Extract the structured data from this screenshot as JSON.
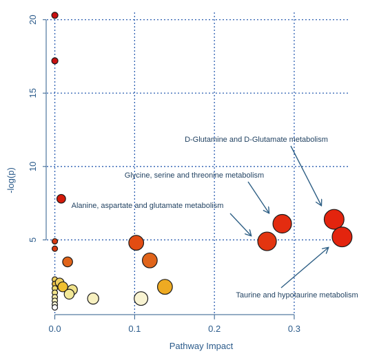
{
  "chart_data": {
    "type": "scatter",
    "title": "",
    "xlabel": "Pathway Impact",
    "ylabel": "-log(p)",
    "xlim": [
      -0.01,
      0.37
    ],
    "ylim": [
      0,
      20.5
    ],
    "x_ticks": [
      0.0,
      0.1,
      0.2,
      0.3
    ],
    "x_tick_labels": [
      "0.0",
      "0.1",
      "0.2",
      "0.3"
    ],
    "y_ticks": [
      5,
      10,
      15,
      20
    ],
    "y_tick_labels": [
      "5",
      "10",
      "15",
      "20"
    ],
    "grid": true,
    "grid_color": "#2a5db0",
    "axis_color": "#2a5a8a",
    "points": [
      {
        "x": 0.0,
        "y": 20.3,
        "size": 0.25,
        "color": "#c81010"
      },
      {
        "x": 0.0,
        "y": 17.2,
        "size": 0.25,
        "color": "#c81010"
      },
      {
        "x": 0.008,
        "y": 7.8,
        "size": 0.35,
        "color": "#d41a0a"
      },
      {
        "x": 0.0,
        "y": 4.9,
        "size": 0.22,
        "color": "#d83a10"
      },
      {
        "x": 0.0,
        "y": 4.4,
        "size": 0.22,
        "color": "#d83a10"
      },
      {
        "x": 0.016,
        "y": 3.5,
        "size": 0.4,
        "color": "#e0641a"
      },
      {
        "x": 0.102,
        "y": 4.8,
        "size": 0.6,
        "color": "#e24c12"
      },
      {
        "x": 0.119,
        "y": 3.6,
        "size": 0.6,
        "color": "#e0641a"
      },
      {
        "x": 0.138,
        "y": 1.8,
        "size": 0.6,
        "color": "#eeaa22"
      },
      {
        "x": 0.0,
        "y": 2.3,
        "size": 0.22,
        "color": "#eed060"
      },
      {
        "x": 0.0,
        "y": 2.0,
        "size": 0.22,
        "color": "#eec040"
      },
      {
        "x": 0.0,
        "y": 1.7,
        "size": 0.22,
        "color": "#f0dc70"
      },
      {
        "x": 0.0,
        "y": 1.4,
        "size": 0.22,
        "color": "#f2e48a"
      },
      {
        "x": 0.0,
        "y": 1.1,
        "size": 0.22,
        "color": "#f6ecaa"
      },
      {
        "x": 0.0,
        "y": 0.85,
        "size": 0.22,
        "color": "#f8f2c0"
      },
      {
        "x": 0.0,
        "y": 0.6,
        "size": 0.22,
        "color": "#fbf6d6"
      },
      {
        "x": 0.0,
        "y": 0.4,
        "size": 0.22,
        "color": "#ffffff"
      },
      {
        "x": 0.006,
        "y": 2.1,
        "size": 0.35,
        "color": "#eed060"
      },
      {
        "x": 0.01,
        "y": 1.8,
        "size": 0.4,
        "color": "#efbf30"
      },
      {
        "x": 0.022,
        "y": 1.6,
        "size": 0.4,
        "color": "#f0e28a"
      },
      {
        "x": 0.018,
        "y": 1.3,
        "size": 0.4,
        "color": "#f2e898"
      },
      {
        "x": 0.048,
        "y": 1.0,
        "size": 0.45,
        "color": "#f7f0c0"
      },
      {
        "x": 0.108,
        "y": 1.0,
        "size": 0.55,
        "color": "#f8f3d2"
      },
      {
        "x": 0.266,
        "y": 4.9,
        "size": 0.75,
        "color": "#e33510"
      },
      {
        "x": 0.285,
        "y": 6.1,
        "size": 0.75,
        "color": "#e32c10"
      },
      {
        "x": 0.35,
        "y": 6.4,
        "size": 0.8,
        "color": "#e3240e"
      },
      {
        "x": 0.36,
        "y": 5.2,
        "size": 0.8,
        "color": "#e3240e"
      }
    ],
    "annotations": [
      {
        "text": "D-Glutamine and D-Glutamate metabolism",
        "target_x": 0.35,
        "target_y": 6.4
      },
      {
        "text": "Glycine, serine and threonine metabolism",
        "target_x": 0.285,
        "target_y": 6.1
      },
      {
        "text": "Alanine, aspartate and glutamate metabolism",
        "target_x": 0.266,
        "target_y": 4.9
      },
      {
        "text": "Taurine and hypotaurine metabolism",
        "target_x": 0.36,
        "target_y": 5.2
      }
    ]
  }
}
